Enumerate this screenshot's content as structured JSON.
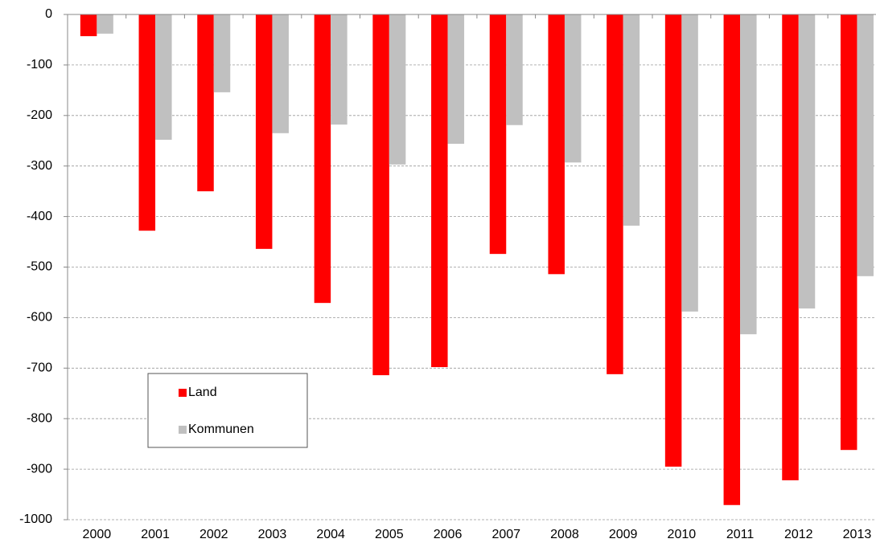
{
  "chart_data": {
    "type": "bar",
    "categories": [
      "2000",
      "2001",
      "2002",
      "2003",
      "2004",
      "2005",
      "2006",
      "2007",
      "2008",
      "2009",
      "2010",
      "2011",
      "2012",
      "2013"
    ],
    "series": [
      {
        "name": "Land",
        "color": "#ff0000",
        "values": [
          -43,
          -428,
          -350,
          -464,
          -571,
          -714,
          -698,
          -474,
          -514,
          -712,
          -895,
          -971,
          -922,
          -862
        ]
      },
      {
        "name": "Kommunen",
        "color": "#c0c0c0",
        "values": [
          -38,
          -248,
          -154,
          -235,
          -218,
          -297,
          -256,
          -219,
          -293,
          -418,
          -588,
          -633,
          -582,
          -518
        ]
      }
    ],
    "ylim": [
      -1000,
      0
    ],
    "yticks": [
      0,
      -100,
      -200,
      -300,
      -400,
      -500,
      -600,
      -700,
      -800,
      -900,
      -1000
    ],
    "grid": true,
    "legend": "lower left"
  }
}
